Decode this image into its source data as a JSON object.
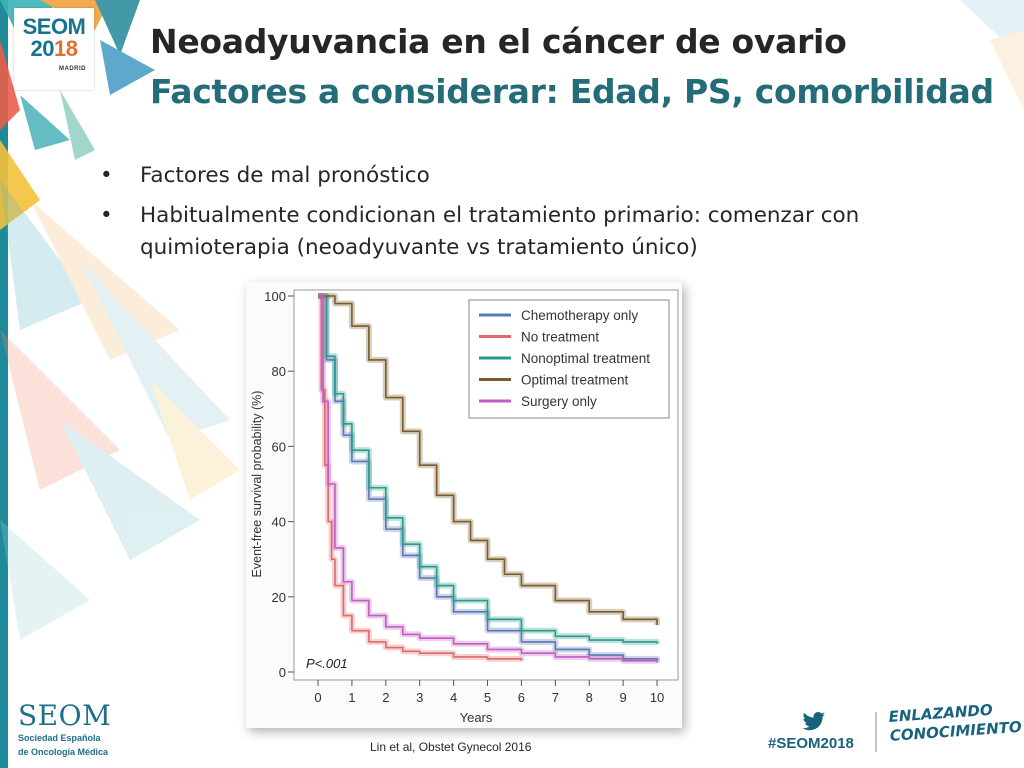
{
  "slide": {
    "title": "Neoadyuvancia en el cáncer de ovario",
    "subtitle": "Factores a considerar: Edad, PS, comorbilidad",
    "bullets": [
      "Factores de mal pronóstico",
      "Habitualmente condicionan el tratamiento primario: comenzar con quimioterapia (neoadyuvante vs tratamiento único)"
    ],
    "citation": "Lin et al, Obstet Gynecol 2016"
  },
  "branding": {
    "logo_top": "SEOM",
    "logo_year_a": "20",
    "logo_year_b": "18",
    "logo_city": "MADRID",
    "footer_logo": "SEOM",
    "footer_sub_line1": "Sociedad Española",
    "footer_sub_line2": "de Oncología Médica",
    "hashtag": "#SEOM2018",
    "slogan_line1": "ENLAZANDO",
    "slogan_line2": "CONOCIMIENTO",
    "twitter_icon": "twitter-bird-icon"
  },
  "colors": {
    "title_dark": "#262626",
    "title_teal": "#236c78",
    "brand_teal": "#17738f",
    "brand_orange": "#e36f2c"
  },
  "chart_data": {
    "type": "line",
    "title": "",
    "xlabel": "Years",
    "ylabel": "Event-free survival probability (%)",
    "xlim": [
      0,
      10.5
    ],
    "ylim": [
      0,
      100
    ],
    "xticks": [
      0,
      1,
      2,
      3,
      4,
      5,
      6,
      7,
      8,
      9,
      10
    ],
    "yticks": [
      0,
      20,
      40,
      60,
      80,
      100
    ],
    "legend_position": "top-right",
    "annotation": "P<.001",
    "grid": false,
    "series": [
      {
        "name": "Chemotherapy only",
        "color": "#5b77b4",
        "x": [
          0,
          0.25,
          0.5,
          0.75,
          1,
          1.5,
          2,
          2.5,
          3,
          3.5,
          4,
          5,
          6,
          7,
          8,
          9,
          10
        ],
        "y": [
          100,
          83,
          72,
          63,
          56,
          46,
          38,
          31,
          25,
          20,
          16,
          11,
          8,
          6,
          4.5,
          3.5,
          3
        ]
      },
      {
        "name": "No treatment",
        "color": "#e06a6a",
        "x": [
          0,
          0.1,
          0.2,
          0.3,
          0.4,
          0.5,
          0.75,
          1,
          1.5,
          2,
          2.5,
          3,
          4,
          5,
          6
        ],
        "y": [
          100,
          75,
          55,
          40,
          30,
          23,
          15,
          11,
          8,
          6.5,
          5.5,
          5,
          4,
          3.5,
          3
        ]
      },
      {
        "name": "Nonoptimal treatment",
        "color": "#2a9a8a",
        "x": [
          0,
          0.25,
          0.5,
          0.75,
          1,
          1.5,
          2,
          2.5,
          3,
          3.5,
          4,
          5,
          6,
          7,
          8,
          9,
          10
        ],
        "y": [
          100,
          84,
          74,
          66,
          59,
          49,
          41,
          34,
          28,
          23,
          19,
          14,
          11,
          9.5,
          8.5,
          8,
          7.5
        ]
      },
      {
        "name": "Optimal treatment",
        "color": "#7a5b2a",
        "x": [
          0,
          0.5,
          1,
          1.5,
          2,
          2.5,
          3,
          3.5,
          4,
          4.5,
          5,
          5.5,
          6,
          7,
          8,
          9,
          10
        ],
        "y": [
          100,
          98,
          92,
          83,
          73,
          64,
          55,
          47,
          40,
          35,
          30,
          26,
          23,
          19,
          16,
          14,
          12.5
        ]
      },
      {
        "name": "Surgery only",
        "color": "#c15cc0",
        "x": [
          0,
          0.15,
          0.3,
          0.5,
          0.75,
          1,
          1.5,
          2,
          2.5,
          3,
          4,
          5,
          6,
          7,
          8,
          9,
          10
        ],
        "y": [
          100,
          72,
          50,
          33,
          24,
          19,
          15,
          12,
          10,
          9,
          7.5,
          6,
          5,
          4,
          3.5,
          3,
          2.5
        ]
      }
    ]
  }
}
